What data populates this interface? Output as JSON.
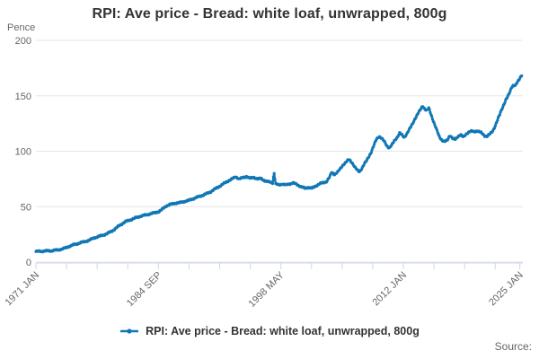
{
  "source": {
    "label": "Source:"
  },
  "colors": {
    "line": "#1177b5",
    "grid": "#e6e6e6",
    "axis": "#ccd6eb",
    "title_text": "#333333",
    "label_text": "#666666"
  },
  "chart_data": {
    "type": "line",
    "title": "RPI: Ave price - Bread: white loaf, unwrapped, 800g",
    "xlabel": "",
    "ylabel": "Pence",
    "ylim": [
      0,
      200
    ],
    "y_ticks": [
      0,
      50,
      100,
      150,
      200
    ],
    "grid": "horizontal",
    "legend_position": "bottom",
    "x_range_years": [
      1971.0,
      2025.33
    ],
    "x_tick_labels": [
      {
        "text": "1971 JAN",
        "year": 1971.0
      },
      {
        "text": "1984 SEP",
        "year": 1984.667
      },
      {
        "text": "1998 MAY",
        "year": 1998.333
      },
      {
        "text": "2012 JAN",
        "year": 2012.0
      },
      {
        "text": "2025 JAN",
        "year": 2025.0
      }
    ],
    "minor_tick_interval_months": 41,
    "series": [
      {
        "name": "RPI: Ave price - Bread: white loaf, unwrapped, 800g",
        "unit": "pence",
        "frequency": "monthly",
        "points_year_pence": [
          [
            1971.0,
            9.5
          ],
          [
            1971.6,
            9.8
          ],
          [
            1972.2,
            10.1
          ],
          [
            1972.8,
            10.3
          ],
          [
            1973.3,
            10.8
          ],
          [
            1973.8,
            11.5
          ],
          [
            1974.3,
            12.8
          ],
          [
            1974.75,
            14.3
          ],
          [
            1975.1,
            15.4
          ],
          [
            1975.6,
            16.5
          ],
          [
            1976.1,
            17.8
          ],
          [
            1976.6,
            18.7
          ],
          [
            1977.0,
            20.0
          ],
          [
            1977.5,
            21.8
          ],
          [
            1978.0,
            23.1
          ],
          [
            1978.5,
            24.3
          ],
          [
            1979.0,
            25.9
          ],
          [
            1979.5,
            28.0
          ],
          [
            1980.0,
            31.0
          ],
          [
            1980.5,
            34.0
          ],
          [
            1981.0,
            36.5
          ],
          [
            1981.5,
            38.0
          ],
          [
            1982.0,
            39.5
          ],
          [
            1982.5,
            41.0
          ],
          [
            1983.0,
            42.0
          ],
          [
            1983.5,
            43.0
          ],
          [
            1984.0,
            44.0
          ],
          [
            1984.7,
            45.5
          ],
          [
            1985.0,
            47.0
          ],
          [
            1985.5,
            50.5
          ],
          [
            1986.0,
            52.0
          ],
          [
            1986.5,
            53.0
          ],
          [
            1987.0,
            53.5
          ],
          [
            1987.5,
            54.5
          ],
          [
            1988.0,
            55.5
          ],
          [
            1988.5,
            57.0
          ],
          [
            1989.0,
            58.5
          ],
          [
            1989.5,
            60.0
          ],
          [
            1990.0,
            61.5
          ],
          [
            1990.5,
            63.5
          ],
          [
            1991.0,
            66.0
          ],
          [
            1991.5,
            68.5
          ],
          [
            1992.0,
            71.0
          ],
          [
            1992.5,
            73.5
          ],
          [
            1993.0,
            75.5
          ],
          [
            1993.3,
            77.0
          ],
          [
            1993.7,
            75.0
          ],
          [
            1994.1,
            76.2
          ],
          [
            1994.5,
            77.2
          ],
          [
            1994.9,
            75.5
          ],
          [
            1995.3,
            76.5
          ],
          [
            1995.7,
            75.0
          ],
          [
            1996.1,
            75.5
          ],
          [
            1996.5,
            73.5
          ],
          [
            1996.9,
            72.5
          ],
          [
            1997.2,
            72.0
          ],
          [
            1997.45,
            71.5
          ],
          [
            1997.55,
            82.0
          ],
          [
            1997.75,
            70.5
          ],
          [
            1998.1,
            69.5
          ],
          [
            1998.5,
            70.5
          ],
          [
            1998.9,
            69.5
          ],
          [
            1999.3,
            70.5
          ],
          [
            1999.7,
            71.5
          ],
          [
            2000.1,
            70.0
          ],
          [
            2000.6,
            68.0
          ],
          [
            2001.0,
            66.5
          ],
          [
            2001.4,
            67.5
          ],
          [
            2001.8,
            66.5
          ],
          [
            2002.2,
            68.5
          ],
          [
            2002.6,
            70.5
          ],
          [
            2003.0,
            71.5
          ],
          [
            2003.4,
            72.5
          ],
          [
            2003.8,
            77.0
          ],
          [
            2004.0,
            81.0
          ],
          [
            2004.3,
            79.0
          ],
          [
            2004.7,
            81.5
          ],
          [
            2005.0,
            84.5
          ],
          [
            2005.3,
            88.0
          ],
          [
            2005.7,
            91.0
          ],
          [
            2005.95,
            92.5
          ],
          [
            2006.3,
            89.5
          ],
          [
            2006.6,
            85.5
          ],
          [
            2006.9,
            82.5
          ],
          [
            2007.1,
            81.5
          ],
          [
            2007.4,
            85.0
          ],
          [
            2007.6,
            88.0
          ],
          [
            2007.9,
            91.5
          ],
          [
            2008.1,
            94.5
          ],
          [
            2008.4,
            99.0
          ],
          [
            2008.7,
            105.0
          ],
          [
            2009.0,
            111.0
          ],
          [
            2009.3,
            113.5
          ],
          [
            2009.6,
            111.5
          ],
          [
            2009.9,
            108.5
          ],
          [
            2010.2,
            104.5
          ],
          [
            2010.45,
            103.0
          ],
          [
            2010.75,
            106.0
          ],
          [
            2011.0,
            109.5
          ],
          [
            2011.3,
            112.5
          ],
          [
            2011.6,
            116.5
          ],
          [
            2011.85,
            114.5
          ],
          [
            2012.1,
            112.5
          ],
          [
            2012.4,
            116.0
          ],
          [
            2012.7,
            120.0
          ],
          [
            2013.0,
            124.5
          ],
          [
            2013.3,
            129.5
          ],
          [
            2013.6,
            133.5
          ],
          [
            2013.9,
            137.5
          ],
          [
            2014.15,
            141.0
          ],
          [
            2014.4,
            138.0
          ],
          [
            2014.6,
            136.5
          ],
          [
            2014.85,
            139.0
          ],
          [
            2015.1,
            133.0
          ],
          [
            2015.4,
            126.0
          ],
          [
            2015.7,
            119.5
          ],
          [
            2016.0,
            113.5
          ],
          [
            2016.3,
            110.0
          ],
          [
            2016.6,
            108.5
          ],
          [
            2016.9,
            110.0
          ],
          [
            2017.2,
            114.5
          ],
          [
            2017.5,
            111.5
          ],
          [
            2017.8,
            110.5
          ],
          [
            2018.1,
            113.5
          ],
          [
            2018.4,
            115.0
          ],
          [
            2018.7,
            112.5
          ],
          [
            2019.0,
            115.5
          ],
          [
            2019.3,
            117.5
          ],
          [
            2019.6,
            118.0
          ],
          [
            2019.9,
            117.5
          ],
          [
            2020.2,
            118.5
          ],
          [
            2020.5,
            117.5
          ],
          [
            2020.8,
            116.0
          ],
          [
            2021.05,
            114.0
          ],
          [
            2021.35,
            113.5
          ],
          [
            2021.65,
            115.5
          ],
          [
            2021.95,
            118.0
          ],
          [
            2022.2,
            122.0
          ],
          [
            2022.45,
            127.0
          ],
          [
            2022.7,
            132.0
          ],
          [
            2022.95,
            137.5
          ],
          [
            2023.2,
            142.0
          ],
          [
            2023.45,
            146.5
          ],
          [
            2023.7,
            150.0
          ],
          [
            2023.95,
            155.0
          ],
          [
            2024.1,
            158.5
          ],
          [
            2024.3,
            159.5
          ],
          [
            2024.5,
            159.0
          ],
          [
            2024.7,
            162.0
          ],
          [
            2024.9,
            164.5
          ],
          [
            2025.05,
            167.0
          ],
          [
            2025.2,
            168.0
          ]
        ]
      }
    ]
  }
}
